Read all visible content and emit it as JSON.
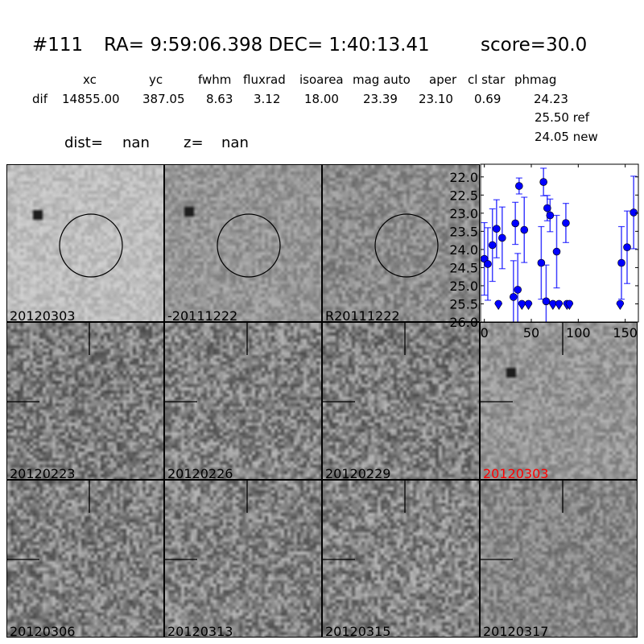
{
  "header": {
    "id": "#111",
    "coords": "RA= 9:59:06.398 DEC= 1:40:13.41",
    "score": "score=30.0",
    "columns": [
      "xc",
      "yc",
      "fwhm",
      "fluxrad",
      "isoarea",
      "mag auto",
      "aper",
      "cl star",
      "phmag"
    ],
    "row_label": "dif",
    "values": [
      "14855.00",
      "387.05",
      "8.63",
      "3.12",
      "18.00",
      "23.39",
      "23.10",
      "0.69",
      "24.23"
    ],
    "ref": "25.50 ref",
    "new": "24.05 new",
    "dist_label": "dist=",
    "dist_value": "nan",
    "z_label": "z=",
    "z_value": "nan"
  },
  "panels": [
    {
      "label": "20120303",
      "circle": true
    },
    {
      "label": "-20111222",
      "circle": true
    },
    {
      "label": "R20111222",
      "circle": true
    },
    {
      "label": "20120223",
      "crosshair": true
    },
    {
      "label": "20120226",
      "crosshair": true
    },
    {
      "label": "20120229",
      "crosshair": true
    },
    {
      "label": "20120303",
      "crosshair": true,
      "highlight": "#ff0000"
    },
    {
      "label": "20120306",
      "crosshair": true
    },
    {
      "label": "20120313",
      "crosshair": true
    },
    {
      "label": "20120315",
      "crosshair": true
    },
    {
      "label": "20120317",
      "crosshair": true
    }
  ],
  "chart_data": {
    "type": "scatter",
    "xlim": [
      -4,
      164
    ],
    "ylim": [
      26.0,
      21.65
    ],
    "y_inverted": true,
    "xticks": [
      0,
      50,
      100,
      150
    ],
    "yticks": [
      22.0,
      22.5,
      23.0,
      23.5,
      24.0,
      24.5,
      25.0,
      25.5,
      26.0
    ],
    "color": "#0000ff",
    "points": [
      {
        "x": 0,
        "y": 24.26,
        "err": 1.0
      },
      {
        "x": 3.7,
        "y": 24.4,
        "err": 1.0
      },
      {
        "x": 8.6,
        "y": 23.88,
        "err": 1.0
      },
      {
        "x": 13,
        "y": 23.43,
        "err": 0.8
      },
      {
        "x": 19,
        "y": 23.68,
        "err": 0.85
      },
      {
        "x": 31,
        "y": 25.31,
        "err": 1.0
      },
      {
        "x": 33,
        "y": 23.28,
        "err": 0.58
      },
      {
        "x": 35.6,
        "y": 25.11,
        "err": 1.0
      },
      {
        "x": 37,
        "y": 22.25,
        "err": 0.22
      },
      {
        "x": 42.5,
        "y": 23.46,
        "err": 0.9
      },
      {
        "x": 60.6,
        "y": 24.37,
        "err": 1.0
      },
      {
        "x": 63,
        "y": 22.14,
        "err": 0.38
      },
      {
        "x": 65.8,
        "y": 25.43,
        "err": 1.0
      },
      {
        "x": 67,
        "y": 22.86,
        "err": 0.35
      },
      {
        "x": 70,
        "y": 23.06,
        "err": 0.45
      },
      {
        "x": 77,
        "y": 24.06,
        "err": 1.0
      },
      {
        "x": 86.8,
        "y": 23.27,
        "err": 0.54
      },
      {
        "x": 146,
        "y": 24.37,
        "err": 1.0
      },
      {
        "x": 152,
        "y": 23.94,
        "err": 1.0
      },
      {
        "x": 159,
        "y": 22.98,
        "err": 1.0
      }
    ],
    "upper_limits": [
      {
        "x": 15,
        "y": 25.5
      },
      {
        "x": 40,
        "y": 25.5
      },
      {
        "x": 47,
        "y": 25.5
      },
      {
        "x": 73,
        "y": 25.5
      },
      {
        "x": 79.5,
        "y": 25.5
      },
      {
        "x": 88,
        "y": 25.5
      },
      {
        "x": 90.6,
        "y": 25.5
      },
      {
        "x": 144.6,
        "y": 25.5
      }
    ]
  }
}
